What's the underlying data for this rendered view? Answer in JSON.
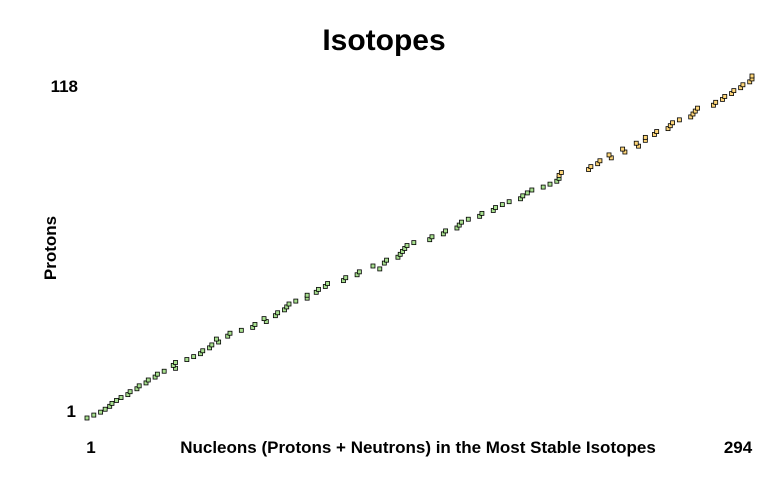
{
  "chart_data": {
    "type": "scatter",
    "title": "Isotopes",
    "xlabel": "Nucleons (Protons + Neutrons) in the Most Stable Isotopes",
    "ylabel": "Protons",
    "xlim": [
      1,
      294
    ],
    "ylim": [
      1,
      118
    ],
    "x_ticks": [
      "1",
      "294"
    ],
    "y_ticks": [
      "1",
      "118"
    ],
    "grid": false,
    "legend": "none",
    "colors": {
      "stable_fill": "#a8e08f",
      "heavy_fill": "#ffd77a",
      "marker_stroke": "#000000"
    },
    "series": [
      {
        "points": [
          [
            1,
            1
          ],
          [
            4,
            2
          ],
          [
            7,
            3
          ],
          [
            9,
            4
          ],
          [
            11,
            5
          ],
          [
            12,
            6
          ],
          [
            14,
            7
          ],
          [
            16,
            8
          ],
          [
            19,
            9
          ],
          [
            20,
            10
          ],
          [
            23,
            11
          ],
          [
            24,
            12
          ],
          [
            27,
            13
          ],
          [
            28,
            14
          ],
          [
            31,
            15
          ],
          [
            32,
            16
          ],
          [
            35,
            17
          ],
          [
            40,
            18
          ],
          [
            39,
            19
          ],
          [
            40,
            20
          ],
          [
            45,
            21
          ],
          [
            48,
            22
          ],
          [
            51,
            23
          ],
          [
            52,
            24
          ],
          [
            55,
            25
          ],
          [
            56,
            26
          ],
          [
            59,
            27
          ],
          [
            58,
            28
          ],
          [
            63,
            29
          ],
          [
            64,
            30
          ],
          [
            69,
            31
          ],
          [
            74,
            32
          ],
          [
            75,
            33
          ],
          [
            80,
            34
          ],
          [
            79,
            35
          ],
          [
            84,
            36
          ],
          [
            85,
            37
          ],
          [
            88,
            38
          ],
          [
            89,
            39
          ],
          [
            90,
            40
          ],
          [
            93,
            41
          ],
          [
            98,
            42
          ],
          [
            98,
            43
          ],
          [
            102,
            44
          ],
          [
            103,
            45
          ],
          [
            106,
            46
          ],
          [
            107,
            47
          ],
          [
            114,
            48
          ],
          [
            115,
            49
          ],
          [
            120,
            50
          ],
          [
            121,
            51
          ],
          [
            130,
            52
          ],
          [
            127,
            53
          ],
          [
            132,
            54
          ],
          [
            133,
            55
          ],
          [
            138,
            56
          ],
          [
            139,
            57
          ],
          [
            140,
            58
          ],
          [
            141,
            59
          ],
          [
            142,
            60
          ],
          [
            145,
            61
          ],
          [
            152,
            62
          ],
          [
            153,
            63
          ],
          [
            158,
            64
          ],
          [
            159,
            65
          ],
          [
            164,
            66
          ],
          [
            165,
            67
          ],
          [
            166,
            68
          ],
          [
            169,
            69
          ],
          [
            174,
            70
          ],
          [
            175,
            71
          ],
          [
            180,
            72
          ],
          [
            181,
            73
          ],
          [
            184,
            74
          ],
          [
            187,
            75
          ],
          [
            192,
            76
          ],
          [
            193,
            77
          ],
          [
            195,
            78
          ],
          [
            197,
            79
          ],
          [
            202,
            80
          ],
          [
            205,
            81
          ],
          [
            208,
            82
          ],
          [
            209,
            83
          ]
        ]
      },
      {
        "points": [
          [
            209,
            84
          ],
          [
            210,
            85
          ],
          [
            222,
            86
          ],
          [
            223,
            87
          ],
          [
            226,
            88
          ],
          [
            227,
            89
          ],
          [
            232,
            90
          ],
          [
            231,
            91
          ],
          [
            238,
            92
          ],
          [
            237,
            93
          ],
          [
            244,
            94
          ],
          [
            243,
            95
          ],
          [
            247,
            96
          ],
          [
            247,
            97
          ],
          [
            251,
            98
          ],
          [
            252,
            99
          ],
          [
            257,
            100
          ],
          [
            258,
            101
          ],
          [
            259,
            102
          ],
          [
            262,
            103
          ],
          [
            267,
            104
          ],
          [
            268,
            105
          ],
          [
            269,
            106
          ],
          [
            270,
            107
          ],
          [
            277,
            108
          ],
          [
            278,
            109
          ],
          [
            281,
            110
          ],
          [
            282,
            111
          ],
          [
            285,
            112
          ],
          [
            286,
            113
          ],
          [
            289,
            114
          ],
          [
            290,
            115
          ],
          [
            293,
            116
          ],
          [
            294,
            117
          ],
          [
            294,
            118
          ]
        ]
      }
    ]
  }
}
